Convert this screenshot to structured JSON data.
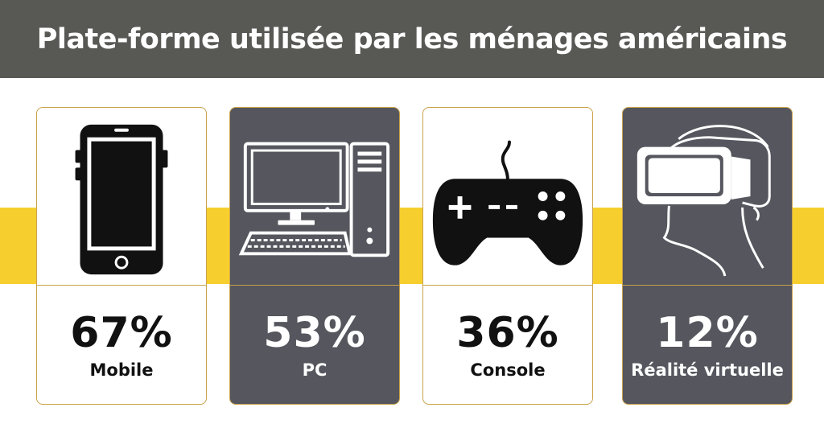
{
  "title": "Plate-forme utilisée par les ménages américains",
  "colors": {
    "header": "#585855",
    "band": "#f6cf2e",
    "dark_card": "#55565e",
    "border": "#c9a24a"
  },
  "chart_data": {
    "type": "bar",
    "title": "Plate-forme utilisée par les ménages américains",
    "categories": [
      "Mobile",
      "PC",
      "Console",
      "Réalité virtuelle"
    ],
    "values": [
      67,
      53,
      36,
      12
    ],
    "value_labels": [
      "67%",
      "53%",
      "36%",
      "12%"
    ],
    "unit": "%",
    "icons": [
      "smartphone-icon",
      "desktop-computer-icon",
      "gamepad-icon",
      "vr-headset-icon"
    ]
  }
}
